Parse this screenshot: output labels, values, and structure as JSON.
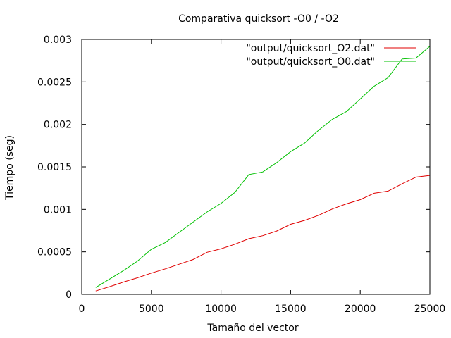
{
  "chart_data": {
    "type": "line",
    "title": "Comparativa quicksort -O0 / -O2",
    "xlabel": "Tamaño del vector",
    "ylabel": "Tiempo (seg)",
    "xlim": [
      0,
      25000
    ],
    "ylim": [
      0,
      0.003
    ],
    "x_ticks": [
      0,
      5000,
      10000,
      15000,
      20000,
      25000
    ],
    "x_tick_labels": [
      "0",
      "5000",
      "10000",
      "15000",
      "20000",
      "25000"
    ],
    "y_ticks": [
      0,
      0.0005,
      0.001,
      0.0015,
      0.002,
      0.0025,
      0.003
    ],
    "y_tick_labels": [
      "0",
      "0.0005",
      "0.001",
      "0.0015",
      "0.002",
      "0.0025",
      "0.003"
    ],
    "grid": false,
    "legend_position": "top-right",
    "x": [
      1000,
      2000,
      3000,
      4000,
      5000,
      6000,
      7000,
      8000,
      9000,
      10000,
      11000,
      12000,
      13000,
      14000,
      15000,
      16000,
      17000,
      18000,
      19000,
      20000,
      21000,
      22000,
      23000,
      24000,
      25000
    ],
    "series": [
      {
        "name": "\"output/quicksort_O2.dat\"",
        "color": "#e00000",
        "values": [
          4e-05,
          9e-05,
          0.000145,
          0.000195,
          0.00025,
          0.0003,
          0.000355,
          0.00041,
          0.000495,
          0.000535,
          0.00059,
          0.000655,
          0.00069,
          0.000745,
          0.000825,
          0.00087,
          0.00093,
          0.001005,
          0.001065,
          0.001115,
          0.00119,
          0.001215,
          0.0013,
          0.00138,
          0.0014
        ]
      },
      {
        "name": "\"output/quicksort_O0.dat\"",
        "color": "#00c000",
        "values": [
          8e-05,
          0.00018,
          0.00028,
          0.00039,
          0.00053,
          0.00061,
          0.00073,
          0.00085,
          0.00097,
          0.00107,
          0.0012,
          0.00141,
          0.00144,
          0.00155,
          0.00168,
          0.00178,
          0.00193,
          0.00206,
          0.00215,
          0.0023,
          0.00245,
          0.00255,
          0.00277,
          0.00278,
          0.00292
        ]
      }
    ]
  }
}
